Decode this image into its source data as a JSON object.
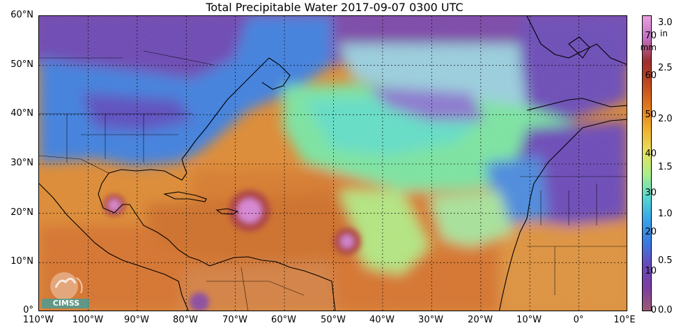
{
  "title": "Total Precipitable Water  2017-09-07 0300 UTC",
  "lat_labels": [
    "60°N",
    "50°N",
    "40°N",
    "30°N",
    "20°N",
    "10°N",
    "0°"
  ],
  "lon_labels": [
    "110°W",
    "100°W",
    "90°W",
    "80°W",
    "70°W",
    "60°W",
    "50°W",
    "40°W",
    "30°W",
    "20°W",
    "10°W",
    "0°",
    "10°E"
  ],
  "colorbar": {
    "mm_ticks": [
      "0",
      "10",
      "20",
      "30",
      "40",
      "50",
      "60",
      "70"
    ],
    "in_ticks": [
      "0.0",
      "0.5",
      "1.0",
      "1.5",
      "2.0",
      "2.5",
      "3.0"
    ],
    "mm_unit": "mm",
    "in_unit": "in",
    "range_mm": [
      0,
      76
    ],
    "colors": [
      "#9c5a74",
      "#7a3fa0",
      "#6a48b8",
      "#3a7ae0",
      "#3aa2e8",
      "#54d8d0",
      "#a8ee8a",
      "#e8e060",
      "#f0b030",
      "#e07820",
      "#c04a20",
      "#9a2e30",
      "#c070c0",
      "#e8a0e0"
    ]
  },
  "logo": {
    "text": "CIMSS"
  },
  "map_colors": {
    "ocean_moist": "#e0892e",
    "ocean_dry": "#6ee6b0",
    "land_dry": "#7a4aa8",
    "land_mid": "#3d86e0",
    "storm_core": "#d47ad0"
  }
}
